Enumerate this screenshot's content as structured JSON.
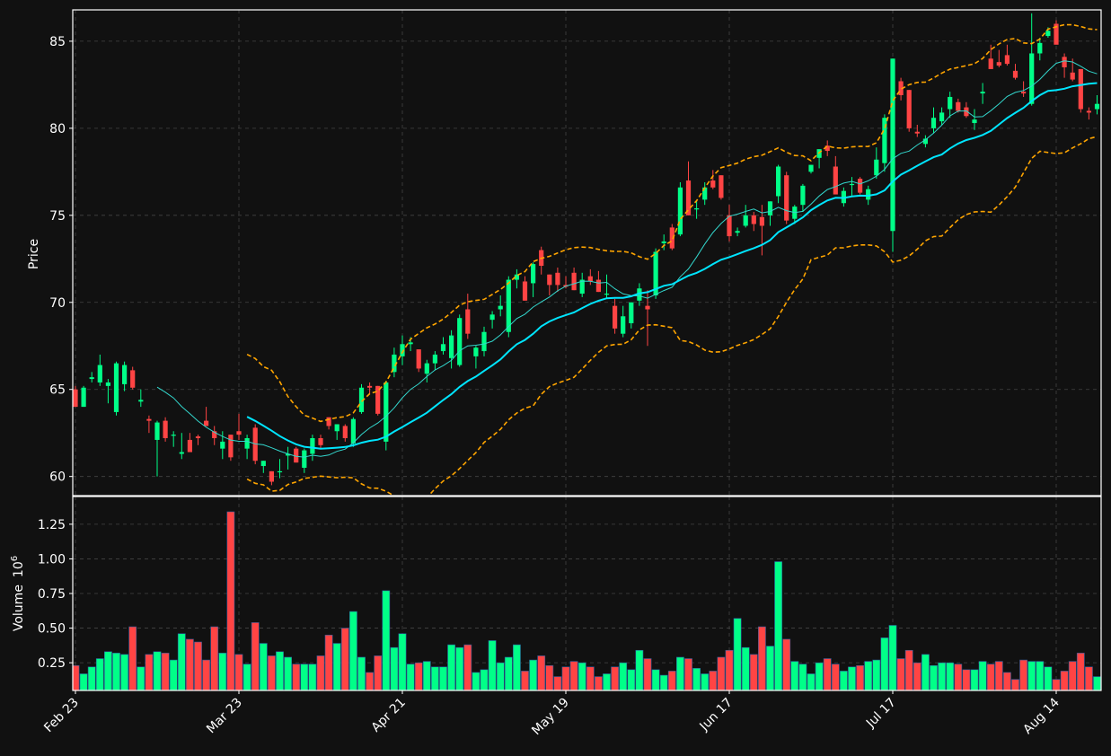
{
  "chart_data": {
    "type": "candlestick",
    "colors": {
      "background": "#111111",
      "up": "#00ff88",
      "down": "#ff4444",
      "ma_fast": "#33d6cc",
      "ma_slow": "#00e5ff",
      "bollinger": "#ffa500",
      "grid": "#444444",
      "text": "#ffffff"
    },
    "price_panel": {
      "ylabel": "Price",
      "ylim": [
        58.9,
        86.8
      ],
      "yticks": [
        60,
        65,
        70,
        75,
        80,
        85
      ],
      "grid": true
    },
    "volume_panel": {
      "ylabel": "Volume",
      "ylabel_exponent": "10",
      "ylabel_exponent_power": "6",
      "ylim": [
        0.05,
        1.45
      ],
      "yticks": [
        "0.25",
        "0.50",
        "0.75",
        "1.00",
        "1.25"
      ],
      "grid": true
    },
    "x_axis": {
      "ticks": [
        {
          "label": "Feb 23",
          "index": 0
        },
        {
          "label": "Mar 23",
          "index": 20
        },
        {
          "label": "Apr 21",
          "index": 40
        },
        {
          "label": "May 19",
          "index": 60
        },
        {
          "label": "Jun 17",
          "index": 80
        },
        {
          "label": "Jul 17",
          "index": 100
        },
        {
          "label": "Aug 14",
          "index": 120
        }
      ],
      "count": 126
    },
    "candles": {
      "fields": [
        "open",
        "high",
        "low",
        "close",
        "volume_millions"
      ],
      "values": [
        [
          65.0,
          65.2,
          64.0,
          64.0,
          0.23
        ],
        [
          64.0,
          65.2,
          64.0,
          65.1,
          0.17
        ],
        [
          65.6,
          66.0,
          65.4,
          65.7,
          0.22
        ],
        [
          65.4,
          67.0,
          65.2,
          66.4,
          0.28
        ],
        [
          65.2,
          65.6,
          64.2,
          65.4,
          0.33
        ],
        [
          63.7,
          66.6,
          63.5,
          66.5,
          0.32
        ],
        [
          65.3,
          66.6,
          64.9,
          66.4,
          0.31
        ],
        [
          66.1,
          66.3,
          65.0,
          65.1,
          0.51
        ],
        [
          64.3,
          65.0,
          64.0,
          64.4,
          0.22
        ],
        [
          63.3,
          63.5,
          62.5,
          63.2,
          0.31
        ],
        [
          62.1,
          63.2,
          60.0,
          63.1,
          0.33
        ],
        [
          63.2,
          63.4,
          62.0,
          62.2,
          0.32
        ],
        [
          62.4,
          62.6,
          61.7,
          62.4,
          0.27
        ],
        [
          61.3,
          62.5,
          61.0,
          61.4,
          0.46
        ],
        [
          62.1,
          62.5,
          61.4,
          61.4,
          0.42
        ],
        [
          62.3,
          62.4,
          61.8,
          62.2,
          0.4
        ],
        [
          63.2,
          64.0,
          62.9,
          62.9,
          0.27
        ],
        [
          62.6,
          62.9,
          61.8,
          62.2,
          0.51
        ],
        [
          61.6,
          62.6,
          61.0,
          62.0,
          0.32
        ],
        [
          62.4,
          62.4,
          60.9,
          61.1,
          1.34
        ],
        [
          62.6,
          63.6,
          62.1,
          62.4,
          0.31
        ],
        [
          61.6,
          62.4,
          61.0,
          62.2,
          0.24
        ],
        [
          62.8,
          63.0,
          60.7,
          60.9,
          0.54
        ],
        [
          60.6,
          60.9,
          60.2,
          60.9,
          0.39
        ],
        [
          60.3,
          60.3,
          59.5,
          59.7,
          0.3
        ],
        [
          60.3,
          61.0,
          59.9,
          60.3,
          0.33
        ],
        [
          61.2,
          61.7,
          60.4,
          61.3,
          0.29
        ],
        [
          61.6,
          61.7,
          60.8,
          60.8,
          0.24
        ],
        [
          60.5,
          61.6,
          60.2,
          61.5,
          0.24
        ],
        [
          61.3,
          62.4,
          60.9,
          62.2,
          0.24
        ],
        [
          62.2,
          62.4,
          61.6,
          61.8,
          0.3
        ],
        [
          63.4,
          63.4,
          62.7,
          62.9,
          0.45
        ],
        [
          62.6,
          63.0,
          62.1,
          63.0,
          0.39
        ],
        [
          62.9,
          63.0,
          62.0,
          62.2,
          0.5
        ],
        [
          61.9,
          63.4,
          61.7,
          63.3,
          0.62
        ],
        [
          63.7,
          65.3,
          63.6,
          65.1,
          0.29
        ],
        [
          65.2,
          65.4,
          64.7,
          65.1,
          0.18
        ],
        [
          65.2,
          65.2,
          63.5,
          63.6,
          0.3
        ],
        [
          62.0,
          65.5,
          61.5,
          65.4,
          0.77
        ],
        [
          66.0,
          67.4,
          65.7,
          67.0,
          0.36
        ],
        [
          66.9,
          68.1,
          66.4,
          67.6,
          0.46
        ],
        [
          67.6,
          68.0,
          67.2,
          67.7,
          0.24
        ],
        [
          67.3,
          67.3,
          66.0,
          66.2,
          0.25
        ],
        [
          65.9,
          66.7,
          65.4,
          66.5,
          0.26
        ],
        [
          66.5,
          67.2,
          66.1,
          67.0,
          0.22
        ],
        [
          67.2,
          68.0,
          67.0,
          67.6,
          0.22
        ],
        [
          66.8,
          68.4,
          66.2,
          68.1,
          0.38
        ],
        [
          66.4,
          69.3,
          66.3,
          69.1,
          0.36
        ],
        [
          69.6,
          70.5,
          67.9,
          68.2,
          0.38
        ],
        [
          66.9,
          67.5,
          66.2,
          67.4,
          0.18
        ],
        [
          67.2,
          68.6,
          66.9,
          68.3,
          0.2
        ],
        [
          69.0,
          69.5,
          68.5,
          69.3,
          0.41
        ],
        [
          69.6,
          70.4,
          69.2,
          69.8,
          0.25
        ],
        [
          68.3,
          71.5,
          68.0,
          71.3,
          0.29
        ],
        [
          71.3,
          71.9,
          70.8,
          71.6,
          0.38
        ],
        [
          71.2,
          71.5,
          70.1,
          70.1,
          0.19
        ],
        [
          71.1,
          72.3,
          70.3,
          72.2,
          0.27
        ],
        [
          73.0,
          73.2,
          71.6,
          72.1,
          0.3
        ],
        [
          71.6,
          71.6,
          70.4,
          71.0,
          0.23
        ],
        [
          71.7,
          72.0,
          70.6,
          71.0,
          0.15
        ],
        [
          71.0,
          71.5,
          70.8,
          70.9,
          0.22
        ],
        [
          71.7,
          72.0,
          70.7,
          70.7,
          0.26
        ],
        [
          70.5,
          71.7,
          70.3,
          71.3,
          0.25
        ],
        [
          71.5,
          71.9,
          71.0,
          71.2,
          0.22
        ],
        [
          71.3,
          71.8,
          70.6,
          70.6,
          0.15
        ],
        [
          70.5,
          71.6,
          70.2,
          70.5,
          0.17
        ],
        [
          69.8,
          70.2,
          68.2,
          68.5,
          0.22
        ],
        [
          68.2,
          69.8,
          68.0,
          69.2,
          0.25
        ],
        [
          68.8,
          70.0,
          68.5,
          70.0,
          0.2
        ],
        [
          70.1,
          71.1,
          69.8,
          70.8,
          0.34
        ],
        [
          69.8,
          70.7,
          67.5,
          69.6,
          0.28
        ],
        [
          70.4,
          73.1,
          70.2,
          72.9,
          0.2
        ],
        [
          73.4,
          73.9,
          73.0,
          73.5,
          0.16
        ],
        [
          74.3,
          74.5,
          73.0,
          73.1,
          0.19
        ],
        [
          73.9,
          76.9,
          73.8,
          76.6,
          0.29
        ],
        [
          77.0,
          78.1,
          75.0,
          75.0,
          0.28
        ],
        [
          75.4,
          75.8,
          74.8,
          75.4,
          0.21
        ],
        [
          75.9,
          76.9,
          75.6,
          76.6,
          0.17
        ],
        [
          77.0,
          77.6,
          76.5,
          76.6,
          0.19
        ],
        [
          77.3,
          77.3,
          75.9,
          76.0,
          0.29
        ],
        [
          75.0,
          75.6,
          73.5,
          73.8,
          0.34
        ],
        [
          74.0,
          74.3,
          73.8,
          74.1,
          0.57
        ],
        [
          74.4,
          75.6,
          74.3,
          75.0,
          0.36
        ],
        [
          75.0,
          75.2,
          74.1,
          74.5,
          0.31
        ],
        [
          74.9,
          75.6,
          72.7,
          74.4,
          0.51
        ],
        [
          75.0,
          75.8,
          74.4,
          75.8,
          0.37
        ],
        [
          76.1,
          77.9,
          75.7,
          77.8,
          0.98
        ],
        [
          77.3,
          77.5,
          74.5,
          74.7,
          0.42
        ],
        [
          74.8,
          75.6,
          74.5,
          75.5,
          0.26
        ],
        [
          75.6,
          76.8,
          75.2,
          76.7,
          0.24
        ],
        [
          77.5,
          77.9,
          77.4,
          77.9,
          0.17
        ],
        [
          78.3,
          78.7,
          77.7,
          78.8,
          0.25
        ],
        [
          79.0,
          79.3,
          78.4,
          78.7,
          0.28
        ],
        [
          77.8,
          78.4,
          76.2,
          76.2,
          0.24
        ],
        [
          75.7,
          76.6,
          75.5,
          76.4,
          0.19
        ],
        [
          76.8,
          77.2,
          76.1,
          76.8,
          0.22
        ],
        [
          77.1,
          77.2,
          76.2,
          76.3,
          0.23
        ],
        [
          75.9,
          76.7,
          75.6,
          76.5,
          0.26
        ],
        [
          77.3,
          78.9,
          77.1,
          78.2,
          0.27
        ],
        [
          78.0,
          80.8,
          77.5,
          80.6,
          0.43
        ],
        [
          74.1,
          84.0,
          72.9,
          84.0,
          0.52
        ],
        [
          82.7,
          82.9,
          81.6,
          81.9,
          0.28
        ],
        [
          82.2,
          82.2,
          79.8,
          80.0,
          0.34
        ],
        [
          79.8,
          80.2,
          79.5,
          79.7,
          0.25
        ],
        [
          79.1,
          79.6,
          78.9,
          79.4,
          0.31
        ],
        [
          80.0,
          81.2,
          79.7,
          80.6,
          0.23
        ],
        [
          80.4,
          81.2,
          80.2,
          80.9,
          0.25
        ],
        [
          81.1,
          82.1,
          80.6,
          81.8,
          0.25
        ],
        [
          81.5,
          81.7,
          80.9,
          81.0,
          0.24
        ],
        [
          81.2,
          81.5,
          80.6,
          80.7,
          0.2
        ],
        [
          80.3,
          81.1,
          79.9,
          80.5,
          0.2
        ],
        [
          82.0,
          82.6,
          81.4,
          82.1,
          0.26
        ],
        [
          84.0,
          84.8,
          83.6,
          83.4,
          0.24
        ],
        [
          83.8,
          84.5,
          83.5,
          83.6,
          0.26
        ],
        [
          84.2,
          84.8,
          83.6,
          83.7,
          0.18
        ],
        [
          83.3,
          83.7,
          82.8,
          82.9,
          0.13
        ],
        [
          82.1,
          82.7,
          81.8,
          82.0,
          0.27
        ],
        [
          81.4,
          86.6,
          81.3,
          84.3,
          0.26
        ],
        [
          84.3,
          85.2,
          83.9,
          84.9,
          0.26
        ],
        [
          85.3,
          85.8,
          85.2,
          85.6,
          0.22
        ],
        [
          86.0,
          86.2,
          85.0,
          84.8,
          0.13
        ],
        [
          84.1,
          84.3,
          82.9,
          83.5,
          0.19
        ],
        [
          83.2,
          84.0,
          82.7,
          82.8,
          0.26
        ],
        [
          83.4,
          83.4,
          80.9,
          81.1,
          0.32
        ],
        [
          81.0,
          81.2,
          80.5,
          80.9,
          0.22
        ],
        [
          81.1,
          81.9,
          80.8,
          81.4,
          0.15
        ]
      ]
    },
    "ma_fast": {
      "start": 10,
      "window": 10
    },
    "ma_slow": {
      "start": 21,
      "window": 20
    },
    "bollinger": {
      "start": 21,
      "window": 20,
      "k": 2
    }
  }
}
